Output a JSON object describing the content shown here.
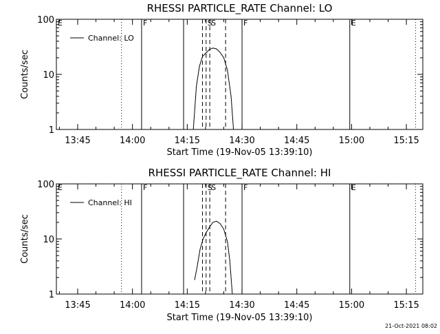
{
  "footer": {
    "timestamp": "21-Oct-2021 08:02"
  },
  "chart_data": [
    {
      "type": "line",
      "title": "RHESSI PARTICLE_RATE Channel: LO",
      "xlabel": "Start Time (19-Nov-05 13:39:10)",
      "ylabel": "Counts/sec",
      "xlim": [
        "13:39:10",
        "15:19:30"
      ],
      "ylim": [
        1,
        100
      ],
      "yscale": "log",
      "xticks": [
        "13:45",
        "14:00",
        "14:15",
        "14:30",
        "14:45",
        "15:00",
        "15:15"
      ],
      "yticks": [
        1,
        10,
        100
      ],
      "legend": {
        "placement": "top-left",
        "entries": [
          "Channel: LO"
        ]
      },
      "series": [
        {
          "name": "Channel: LO",
          "x": [
            "14:16:40",
            "14:17:30",
            "14:18:20",
            "14:19:10",
            "14:20:00",
            "14:21:00",
            "14:22:00",
            "14:23:00",
            "14:24:00",
            "14:25:00",
            "14:26:00",
            "14:27:00",
            "14:27:40"
          ],
          "y": [
            1.0,
            6,
            14,
            21,
            24,
            28,
            30,
            29,
            25,
            20,
            12,
            4,
            1.0
          ]
        }
      ],
      "markers": [
        {
          "label": "E",
          "time": "13:39:10",
          "style": "solid"
        },
        {
          "label": "",
          "time": "13:57:00",
          "style": "dotted"
        },
        {
          "label": "F",
          "time": "14:02:30",
          "style": "solid"
        },
        {
          "label": "",
          "time": "14:14:00",
          "style": "solid"
        },
        {
          "label": "",
          "time": "14:19:10",
          "style": "dashed"
        },
        {
          "label": "S",
          "time": "14:20:10",
          "style": "dashed"
        },
        {
          "label": "S",
          "time": "14:21:10",
          "style": "dashed"
        },
        {
          "label": "",
          "time": "14:25:30",
          "style": "dashed"
        },
        {
          "label": "F",
          "time": "14:30:00",
          "style": "solid"
        },
        {
          "label": "E",
          "time": "14:59:30",
          "style": "solid"
        },
        {
          "label": "",
          "time": "15:17:30",
          "style": "dotted"
        }
      ]
    },
    {
      "type": "line",
      "title": "RHESSI PARTICLE_RATE Channel: HI",
      "xlabel": "Start Time (19-Nov-05 13:39:10)",
      "ylabel": "Counts/sec",
      "xlim": [
        "13:39:10",
        "15:19:30"
      ],
      "ylim": [
        1,
        100
      ],
      "yscale": "log",
      "xticks": [
        "13:45",
        "14:00",
        "14:15",
        "14:30",
        "14:45",
        "15:00",
        "15:15"
      ],
      "yticks": [
        1,
        10,
        100
      ],
      "legend": {
        "placement": "top-left",
        "entries": [
          "Channel: HI"
        ]
      },
      "series": [
        {
          "name": "Channel: HI",
          "x": [
            "14:17:00",
            "14:17:40",
            "14:18:30",
            "14:19:20",
            "14:20:10",
            "14:21:00",
            "14:22:00",
            "14:23:00",
            "14:24:00",
            "14:25:00",
            "14:26:00",
            "14:26:40",
            "14:27:20"
          ],
          "y": [
            1.8,
            3,
            6.5,
            10,
            13,
            16,
            20,
            21,
            19,
            15,
            9,
            4,
            1.0
          ]
        }
      ],
      "markers": [
        {
          "label": "E",
          "time": "13:39:10",
          "style": "solid"
        },
        {
          "label": "",
          "time": "13:57:00",
          "style": "dotted"
        },
        {
          "label": "F",
          "time": "14:02:30",
          "style": "solid"
        },
        {
          "label": "",
          "time": "14:14:00",
          "style": "solid"
        },
        {
          "label": "",
          "time": "14:19:10",
          "style": "dashed"
        },
        {
          "label": "S",
          "time": "14:20:10",
          "style": "dashed"
        },
        {
          "label": "S",
          "time": "14:21:10",
          "style": "dashed"
        },
        {
          "label": "",
          "time": "14:25:30",
          "style": "dashed"
        },
        {
          "label": "F",
          "time": "14:30:00",
          "style": "solid"
        },
        {
          "label": "E",
          "time": "14:59:30",
          "style": "solid"
        },
        {
          "label": "",
          "time": "15:17:30",
          "style": "dotted"
        }
      ]
    }
  ]
}
